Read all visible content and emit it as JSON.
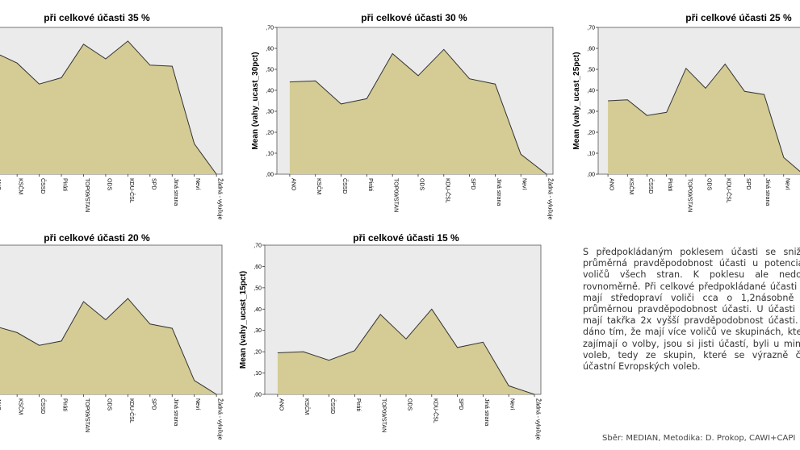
{
  "categories": [
    "ANO",
    "KSČM",
    "ČSSD",
    "Piráti",
    "TOP09/STAN",
    "ODS",
    "KDU-ČSL",
    "SPD",
    "Jiná strana",
    "Neví",
    "Žádná - vylučuje"
  ],
  "colors": {
    "fill": "#d4cc94",
    "line": "#333333",
    "plot_bg": "#ebebeb"
  },
  "chart_data": [
    {
      "type": "area",
      "title": "při celkové účasti 35 %",
      "ylabel": "",
      "yticks": [],
      "ylim": [
        0,
        0.7
      ],
      "series": [
        {
          "values": [
            0.58,
            0.53,
            0.43,
            0.46,
            0.62,
            0.55,
            0.635,
            0.52,
            0.515,
            0.145,
            0.0
          ]
        }
      ]
    },
    {
      "type": "area",
      "title": "při celkové účasti 30 %",
      "ylabel": "Mean (vahy_ucast_30pct)",
      "yticks": [
        ",00",
        ",10",
        ",20",
        ",30",
        ",40",
        ",50",
        ",60",
        ",70"
      ],
      "ylim": [
        0,
        0.7
      ],
      "series": [
        {
          "values": [
            0.44,
            0.445,
            0.335,
            0.36,
            0.575,
            0.47,
            0.595,
            0.455,
            0.43,
            0.095,
            0.0
          ]
        }
      ]
    },
    {
      "type": "area",
      "title": "při celkové účasti 25 %",
      "ylabel": "Mean (vahy_ucast_25pct)",
      "yticks": [
        ",00",
        ",10",
        ",20",
        ",30",
        ",40",
        ",50",
        ",60",
        ",70"
      ],
      "ylim": [
        0,
        0.7
      ],
      "series": [
        {
          "values": [
            0.35,
            0.355,
            0.28,
            0.295,
            0.505,
            0.41,
            0.525,
            0.395,
            0.38,
            0.08,
            0.0
          ]
        }
      ]
    },
    {
      "type": "area",
      "title": "při celkové účasti 20 %",
      "ylabel": "",
      "yticks": [],
      "ylim": [
        0,
        0.7
      ],
      "series": [
        {
          "values": [
            0.32,
            0.29,
            0.23,
            0.25,
            0.435,
            0.35,
            0.45,
            0.33,
            0.31,
            0.065,
            0.0
          ]
        }
      ]
    },
    {
      "type": "area",
      "title": "při celkové účasti 15 %",
      "ylabel": "Mean (vahy_ucast_15pct)",
      "yticks": [
        ",00",
        ",10",
        ",20",
        ",30",
        ",40",
        ",50",
        ",60",
        ",70"
      ],
      "ylim": [
        0,
        0.7
      ],
      "series": [
        {
          "values": [
            0.195,
            0.2,
            0.16,
            0.205,
            0.375,
            0.26,
            0.4,
            0.22,
            0.245,
            0.04,
            0.0
          ]
        }
      ]
    }
  ],
  "note_text": "S předpokládaným poklesem účasti se snižuje i průměrná pravděpodobnost účasti u potenciálních voličů všech stran. K poklesu ale nedochází rovnoměrně. Při celkové předpokládané účasti 15 % mají středopraví voliči cca o 1,2násobně vyšší průměrnou pravděpodobnost účasti. U účasti 15 % mají takřka 2x vyšší pravděpodobnost účasti. Je to dáno tím, že mají více voličů ve skupinách, které se zajímají o volby, jsou si jisti účastí, byli u minulých voleb, tedy ze skupin, které se výrazně častěji účastní Evropských voleb.",
  "source_text": "Sběr: MEDIAN, Metodika: D. Prokop, CAWI+CAPI"
}
